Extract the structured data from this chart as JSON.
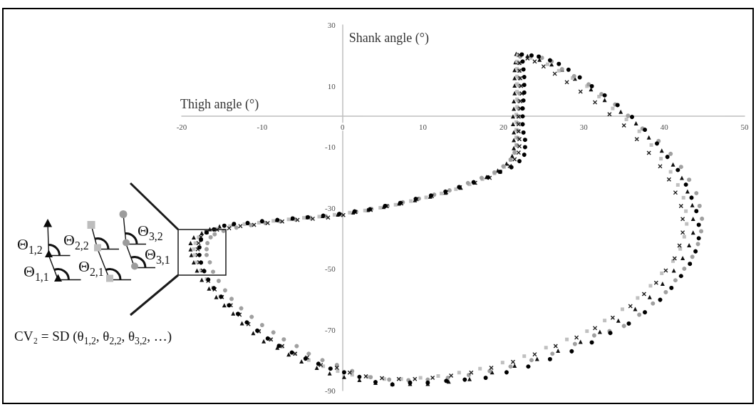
{
  "chart_data": {
    "type": "scatter",
    "xlabel": "Thigh angle (°)",
    "ylabel": "Shank angle (°)",
    "xlim": [
      -20,
      50
    ],
    "xticks": [
      -20,
      -10,
      0,
      10,
      20,
      30,
      40,
      50
    ],
    "ylim": [
      -90,
      30
    ],
    "yticks": [
      -90,
      -70,
      -50,
      -30,
      -10,
      10,
      30
    ],
    "annotations": [
      "Θ$_{1,2}$",
      "Θ$_{1,1}$",
      "Θ$_{2,2}$",
      "Θ$_{2,1}$",
      "Θ$_{3,2}$",
      "Θ$_{3,1}$",
      "CV₂ = SD (θ$_{1,2}$, θ$_{2,2}$, θ$_{3,2}$, …)"
    ],
    "series": [
      {
        "color": "#111111",
        "marker": "triangle",
        "x": [
          21.6,
          23.0,
          24.5,
          26.0,
          27.3,
          28.9,
          30.9,
          32.6,
          34.6,
          36.5,
          38.1,
          39.7,
          41.1,
          42.2,
          42.9,
          43.5,
          43.6,
          43.6,
          43.1,
          42.3,
          41.2,
          39.8,
          38.2,
          36.4,
          34.3,
          32.0,
          29.6,
          26.8,
          24.2,
          21.4,
          18.6,
          15.8,
          13.2,
          10.6,
          8.4,
          6.2,
          4.1,
          2.1,
          0.2,
          -1.6,
          -3.2,
          -5.1,
          -6.7,
          -8.1,
          -9.8,
          -11.1,
          -12.5,
          -13.6,
          -14.7,
          -15.7,
          -16.6,
          -17.5,
          -18.1,
          -18.5,
          -18.8,
          -18.9,
          -18.9,
          -18.5,
          -17.5,
          -16.5,
          -15.3,
          -13.6,
          -11.9,
          -10.0,
          -8.2,
          -6.3,
          -4.5,
          -2.5,
          -0.6,
          1.3,
          3.1,
          5.1,
          7.0,
          9.0,
          10.9,
          12.8,
          14.7,
          16.4,
          17.9,
          19.3,
          20.4,
          21.1,
          21.3,
          21.3,
          21.3,
          21.2,
          21.2,
          21.3,
          21.3,
          21.4,
          21.4,
          21.4,
          21.4,
          21.5
        ],
        "values": [
          20.5,
          19.8,
          18.6,
          17.1,
          15.4,
          12.4,
          8.9,
          5.4,
          1.5,
          -2.3,
          -6.9,
          -11.2,
          -15.8,
          -20.2,
          -24.6,
          -29.1,
          -33.6,
          -38.1,
          -42.3,
          -46.5,
          -50.6,
          -54.9,
          -59.3,
          -63.2,
          -67.0,
          -70.7,
          -74.0,
          -76.9,
          -79.6,
          -81.8,
          -84.0,
          -86.2,
          -87.0,
          -87.8,
          -87.8,
          -87.8,
          -87.4,
          -86.5,
          -85.5,
          -84.3,
          -82.5,
          -80.4,
          -78.1,
          -75.9,
          -73.8,
          -71.1,
          -67.9,
          -64.7,
          -62.0,
          -59.3,
          -56.5,
          -53.6,
          -50.6,
          -47.9,
          -45.5,
          -43.6,
          -41.6,
          -39.7,
          -38.3,
          -37.0,
          -36.1,
          -35.4,
          -35.0,
          -34.4,
          -34.0,
          -33.5,
          -33.1,
          -32.7,
          -32.2,
          -31.5,
          -30.7,
          -29.7,
          -28.6,
          -27.5,
          -26.3,
          -25.0,
          -23.4,
          -21.7,
          -19.9,
          -17.8,
          -15.5,
          -13.0,
          -10.4,
          -7.8,
          -5.2,
          -2.5,
          0.0,
          2.5,
          5.0,
          7.6,
          10.1,
          12.6,
          15.2,
          17.8
        ]
      },
      {
        "color": "#c0c0c0",
        "marker": "square",
        "x": [
          21.8,
          23.4,
          25.5,
          26.9,
          28.6,
          30.4,
          31.9,
          33.6,
          35.3,
          36.9,
          38.4,
          39.6,
          40.8,
          41.7,
          42.4,
          42.7,
          42.8,
          42.5,
          42.0,
          41.1,
          39.7,
          38.3,
          36.7,
          34.8,
          32.6,
          30.4,
          27.9,
          25.3,
          22.6,
          19.9,
          17.1,
          14.5,
          11.9,
          9.7,
          7.3,
          5.2,
          3.1,
          1.2,
          -0.6,
          -2.4,
          -4.2,
          -5.9,
          -7.5,
          -9.0,
          -10.4,
          -11.8,
          -13.0,
          -14.2,
          -15.2,
          -16.1,
          -16.9,
          -17.6,
          -18.1,
          -18.4,
          -18.5,
          -18.3,
          -17.9,
          -17.0,
          -15.6,
          -14.0,
          -12.2,
          -10.4,
          -8.6,
          -6.7,
          -4.8,
          -2.9,
          -1.0,
          0.9,
          2.8,
          4.7,
          6.6,
          8.5,
          10.4,
          12.3,
          14.1,
          15.8,
          17.4,
          18.9,
          20.1,
          20.9,
          21.4,
          21.6,
          21.6,
          21.6,
          21.6,
          21.6,
          21.7,
          21.7,
          21.7,
          21.7,
          21.7,
          21.7,
          21.7
        ],
        "values": [
          20.0,
          19.2,
          17.1,
          15.0,
          12.6,
          9.9,
          6.5,
          2.6,
          -1.0,
          -4.9,
          -9.4,
          -13.9,
          -18.2,
          -22.5,
          -26.7,
          -31.1,
          -35.3,
          -39.5,
          -43.5,
          -47.5,
          -51.5,
          -55.6,
          -59.6,
          -63.3,
          -67.0,
          -70.5,
          -73.2,
          -75.9,
          -78.7,
          -80.8,
          -82.8,
          -84.1,
          -85.2,
          -85.8,
          -86.2,
          -86.2,
          -85.5,
          -84.8,
          -83.6,
          -82.0,
          -80.0,
          -77.9,
          -75.6,
          -73.2,
          -70.6,
          -67.8,
          -64.9,
          -62.0,
          -59.1,
          -56.2,
          -53.4,
          -50.6,
          -47.9,
          -45.5,
          -43.6,
          -41.6,
          -39.7,
          -38.0,
          -36.9,
          -36.0,
          -35.4,
          -34.9,
          -34.3,
          -33.8,
          -33.3,
          -32.9,
          -32.3,
          -31.6,
          -30.9,
          -30.0,
          -29.0,
          -27.8,
          -26.6,
          -25.3,
          -23.9,
          -22.3,
          -20.6,
          -18.7,
          -16.6,
          -14.3,
          -11.9,
          -9.4,
          -6.9,
          -4.4,
          -1.9,
          0.6,
          3.1,
          5.6,
          8.1,
          10.6,
          13.1,
          15.6,
          18.0
        ]
      },
      {
        "color": "#a0a0a0",
        "marker": "circle",
        "x": [
          22.1,
          23.5,
          24.8,
          26.0,
          27.3,
          28.8,
          30.6,
          32.2,
          33.9,
          35.5,
          37.3,
          39.3,
          40.8,
          42.1,
          43.1,
          44.0,
          44.4,
          44.7,
          44.6,
          44.2,
          43.5,
          42.5,
          41.4,
          40.2,
          38.6,
          36.9,
          35.0,
          33.2,
          31.3,
          28.9,
          26.1,
          23.5,
          20.9,
          18.3,
          15.7,
          13.1,
          10.6,
          8.2,
          5.8,
          3.5,
          1.2,
          -0.7,
          -2.5,
          -4.2,
          -5.7,
          -7.3,
          -8.6,
          -10.0,
          -11.3,
          -12.6,
          -13.8,
          -14.6,
          -15.4,
          -16.1,
          -16.5,
          -16.9,
          -16.9,
          -16.8,
          -16.4,
          -15.9,
          -14.8,
          -13.2,
          -11.4,
          -9.6,
          -7.8,
          -5.9,
          -4.0,
          -2.1,
          -0.2,
          1.7,
          3.6,
          5.6,
          7.5,
          9.5,
          11.4,
          13.3,
          15.6,
          17.3,
          18.9,
          20.0,
          20.9,
          21.4,
          21.7,
          21.8,
          21.8,
          21.8,
          21.8,
          21.9,
          21.9,
          22.0,
          22.0,
          22.0,
          22.0,
          22.0
        ],
        "values": [
          19.6,
          19.9,
          19.2,
          18.0,
          15.5,
          13.2,
          10.5,
          7.3,
          3.9,
          0.2,
          -4.0,
          -8.1,
          -12.3,
          -16.6,
          -20.8,
          -25.2,
          -29.4,
          -33.6,
          -37.7,
          -41.9,
          -46.1,
          -50.0,
          -53.8,
          -57.7,
          -61.4,
          -65.1,
          -68.8,
          -70.5,
          -71.9,
          -74.7,
          -77.9,
          -80.0,
          -82.1,
          -83.6,
          -84.9,
          -85.8,
          -86.4,
          -86.6,
          -86.4,
          -85.6,
          -83.6,
          -81.6,
          -80.0,
          -77.9,
          -75.4,
          -73.2,
          -70.9,
          -68.5,
          -65.8,
          -63.0,
          -59.9,
          -57.1,
          -54.0,
          -51.0,
          -47.9,
          -45.5,
          -43.6,
          -41.6,
          -39.7,
          -38.7,
          -37.6,
          -36.5,
          -35.7,
          -35.0,
          -34.4,
          -33.8,
          -33.3,
          -32.8,
          -32.2,
          -31.3,
          -30.4,
          -29.4,
          -28.2,
          -27.0,
          -25.7,
          -24.3,
          -21.9,
          -20.2,
          -18.4,
          -16.4,
          -14.2,
          -11.9,
          -9.5,
          -7.1,
          -4.7,
          -2.3,
          0.1,
          2.5,
          5.0,
          7.5,
          10.0,
          12.5,
          15.0,
          17.5
        ]
      },
      {
        "color": "#1a1a1a",
        "marker": "cross",
        "x": [
          22.0,
          23.0,
          23.9,
          25.0,
          26.4,
          27.9,
          29.6,
          31.4,
          33.2,
          35.0,
          36.6,
          38.1,
          39.5,
          40.6,
          41.4,
          42.1,
          42.3,
          42.3,
          41.9,
          41.3,
          40.2,
          39.0,
          37.5,
          35.8,
          33.6,
          31.4,
          29.1,
          26.5,
          23.9,
          21.2,
          18.5,
          16.0,
          13.5,
          11.2,
          9.0,
          7.0,
          4.9,
          2.9,
          0.9,
          -0.7,
          -2.7,
          -4.4,
          -5.9,
          -7.5,
          -8.9,
          -10.4,
          -11.7,
          -12.8,
          -13.9,
          -15.0,
          -15.9,
          -16.7,
          -17.4,
          -17.8,
          -18.0,
          -18.0,
          -17.9,
          -17.6,
          -16.9,
          -15.6,
          -14.1,
          -12.7,
          -11.0,
          -9.3,
          -7.5,
          -5.6,
          -3.7,
          -1.8,
          0.1,
          1.6,
          3.5,
          5.5,
          7.3,
          9.2,
          11.1,
          12.9,
          14.6,
          16.5,
          18.3,
          19.6,
          20.8,
          21.4,
          21.9,
          22.0,
          22.0,
          21.9,
          21.9,
          21.9,
          22.1,
          22.1,
          22.3,
          22.2,
          22.1,
          22.0,
          22.0
        ],
        "values": [
          20.2,
          19.0,
          18.0,
          16.4,
          14.0,
          11.2,
          8.1,
          4.6,
          0.7,
          -3.0,
          -7.5,
          -12.0,
          -16.4,
          -20.7,
          -25.0,
          -29.4,
          -33.7,
          -38.1,
          -42.4,
          -46.6,
          -50.6,
          -54.6,
          -58.3,
          -62.3,
          -66.1,
          -69.5,
          -72.6,
          -75.4,
          -78.1,
          -80.6,
          -82.5,
          -84.1,
          -85.1,
          -85.8,
          -86.2,
          -86.2,
          -85.9,
          -85.3,
          -84.1,
          -82.5,
          -81.6,
          -79.1,
          -77.9,
          -75.4,
          -73.2,
          -70.5,
          -68.2,
          -65.1,
          -62.0,
          -59.3,
          -56.8,
          -54.0,
          -50.6,
          -47.9,
          -45.5,
          -43.6,
          -41.6,
          -39.6,
          -38.0,
          -37.2,
          -36.7,
          -36.0,
          -35.6,
          -35.0,
          -34.5,
          -34.0,
          -33.6,
          -33.2,
          -32.4,
          -31.4,
          -30.7,
          -29.5,
          -28.6,
          -27.2,
          -26.2,
          -24.9,
          -23.3,
          -21.8,
          -20.2,
          -18.2,
          -16.3,
          -14.1,
          -11.9,
          -9.8,
          -7.5,
          -4.9,
          -2.6,
          -0.1,
          2.6,
          5.0,
          7.5,
          10.0,
          12.5,
          15.0,
          17.5
        ]
      },
      {
        "color": "#000000",
        "marker": "circle",
        "x": [
          22.3,
          23.5,
          24.4,
          25.8,
          26.9,
          28.1,
          29.5,
          31.0,
          32.6,
          34.2,
          36.0,
          37.6,
          39.1,
          40.4,
          41.7,
          42.7,
          43.4,
          44.0,
          44.3,
          44.3,
          43.9,
          43.2,
          42.1,
          40.9,
          39.5,
          37.6,
          35.6,
          33.3,
          31.0,
          28.5,
          25.8,
          23.1,
          20.4,
          17.8,
          15.2,
          12.9,
          10.6,
          8.4,
          6.2,
          4.1,
          2.1,
          0.2,
          -1.5,
          -3.0,
          -4.6,
          -6.3,
          -7.9,
          -9.3,
          -10.6,
          -11.9,
          -13.0,
          -14.1,
          -15.1,
          -16.0,
          -16.7,
          -17.2,
          -17.6,
          -17.8,
          -17.8,
          -17.6,
          -16.9,
          -16.0,
          -14.7,
          -13.5,
          -11.8,
          -10.0,
          -8.1,
          -6.2,
          -4.3,
          -2.4,
          -0.4,
          1.5,
          3.4,
          5.3,
          7.2,
          9.1,
          11.0,
          12.8,
          14.5,
          16.3,
          18.1,
          19.6,
          21.0,
          22.0,
          22.6,
          22.7,
          22.7,
          22.5,
          22.4,
          22.4,
          22.4,
          22.5,
          22.6,
          22.6,
          22.6,
          22.5,
          22.4
        ],
        "values": [
          20.3,
          20.0,
          19.6,
          18.4,
          17.2,
          15.3,
          12.8,
          9.9,
          6.9,
          3.7,
          -0.2,
          -4.4,
          -8.9,
          -13.3,
          -17.6,
          -22.4,
          -26.7,
          -31.1,
          -35.6,
          -40.0,
          -44.3,
          -48.4,
          -52.4,
          -56.3,
          -60.2,
          -64.3,
          -68.0,
          -71.1,
          -74.2,
          -77.1,
          -79.7,
          -82.1,
          -84.0,
          -85.8,
          -86.4,
          -86.8,
          -87.4,
          -87.4,
          -88.0,
          -87.2,
          -85.5,
          -84.0,
          -82.8,
          -81.2,
          -79.5,
          -77.5,
          -75.3,
          -72.9,
          -70.3,
          -67.6,
          -64.8,
          -62.0,
          -59.2,
          -56.4,
          -53.6,
          -50.8,
          -48.0,
          -45.5,
          -43.0,
          -40.5,
          -38.1,
          -37.1,
          -35.9,
          -35.3,
          -35.0,
          -34.4,
          -34.0,
          -33.5,
          -33.1,
          -32.6,
          -32.0,
          -31.2,
          -30.5,
          -29.4,
          -28.4,
          -27.1,
          -26.0,
          -24.7,
          -23.2,
          -21.6,
          -20.0,
          -18.2,
          -16.7,
          -14.7,
          -12.6,
          -10.1,
          -7.7,
          -5.3,
          -2.6,
          0.0,
          2.6,
          5.2,
          7.8,
          10.3,
          12.9,
          15.4,
          18.0
        ]
      }
    ]
  }
}
